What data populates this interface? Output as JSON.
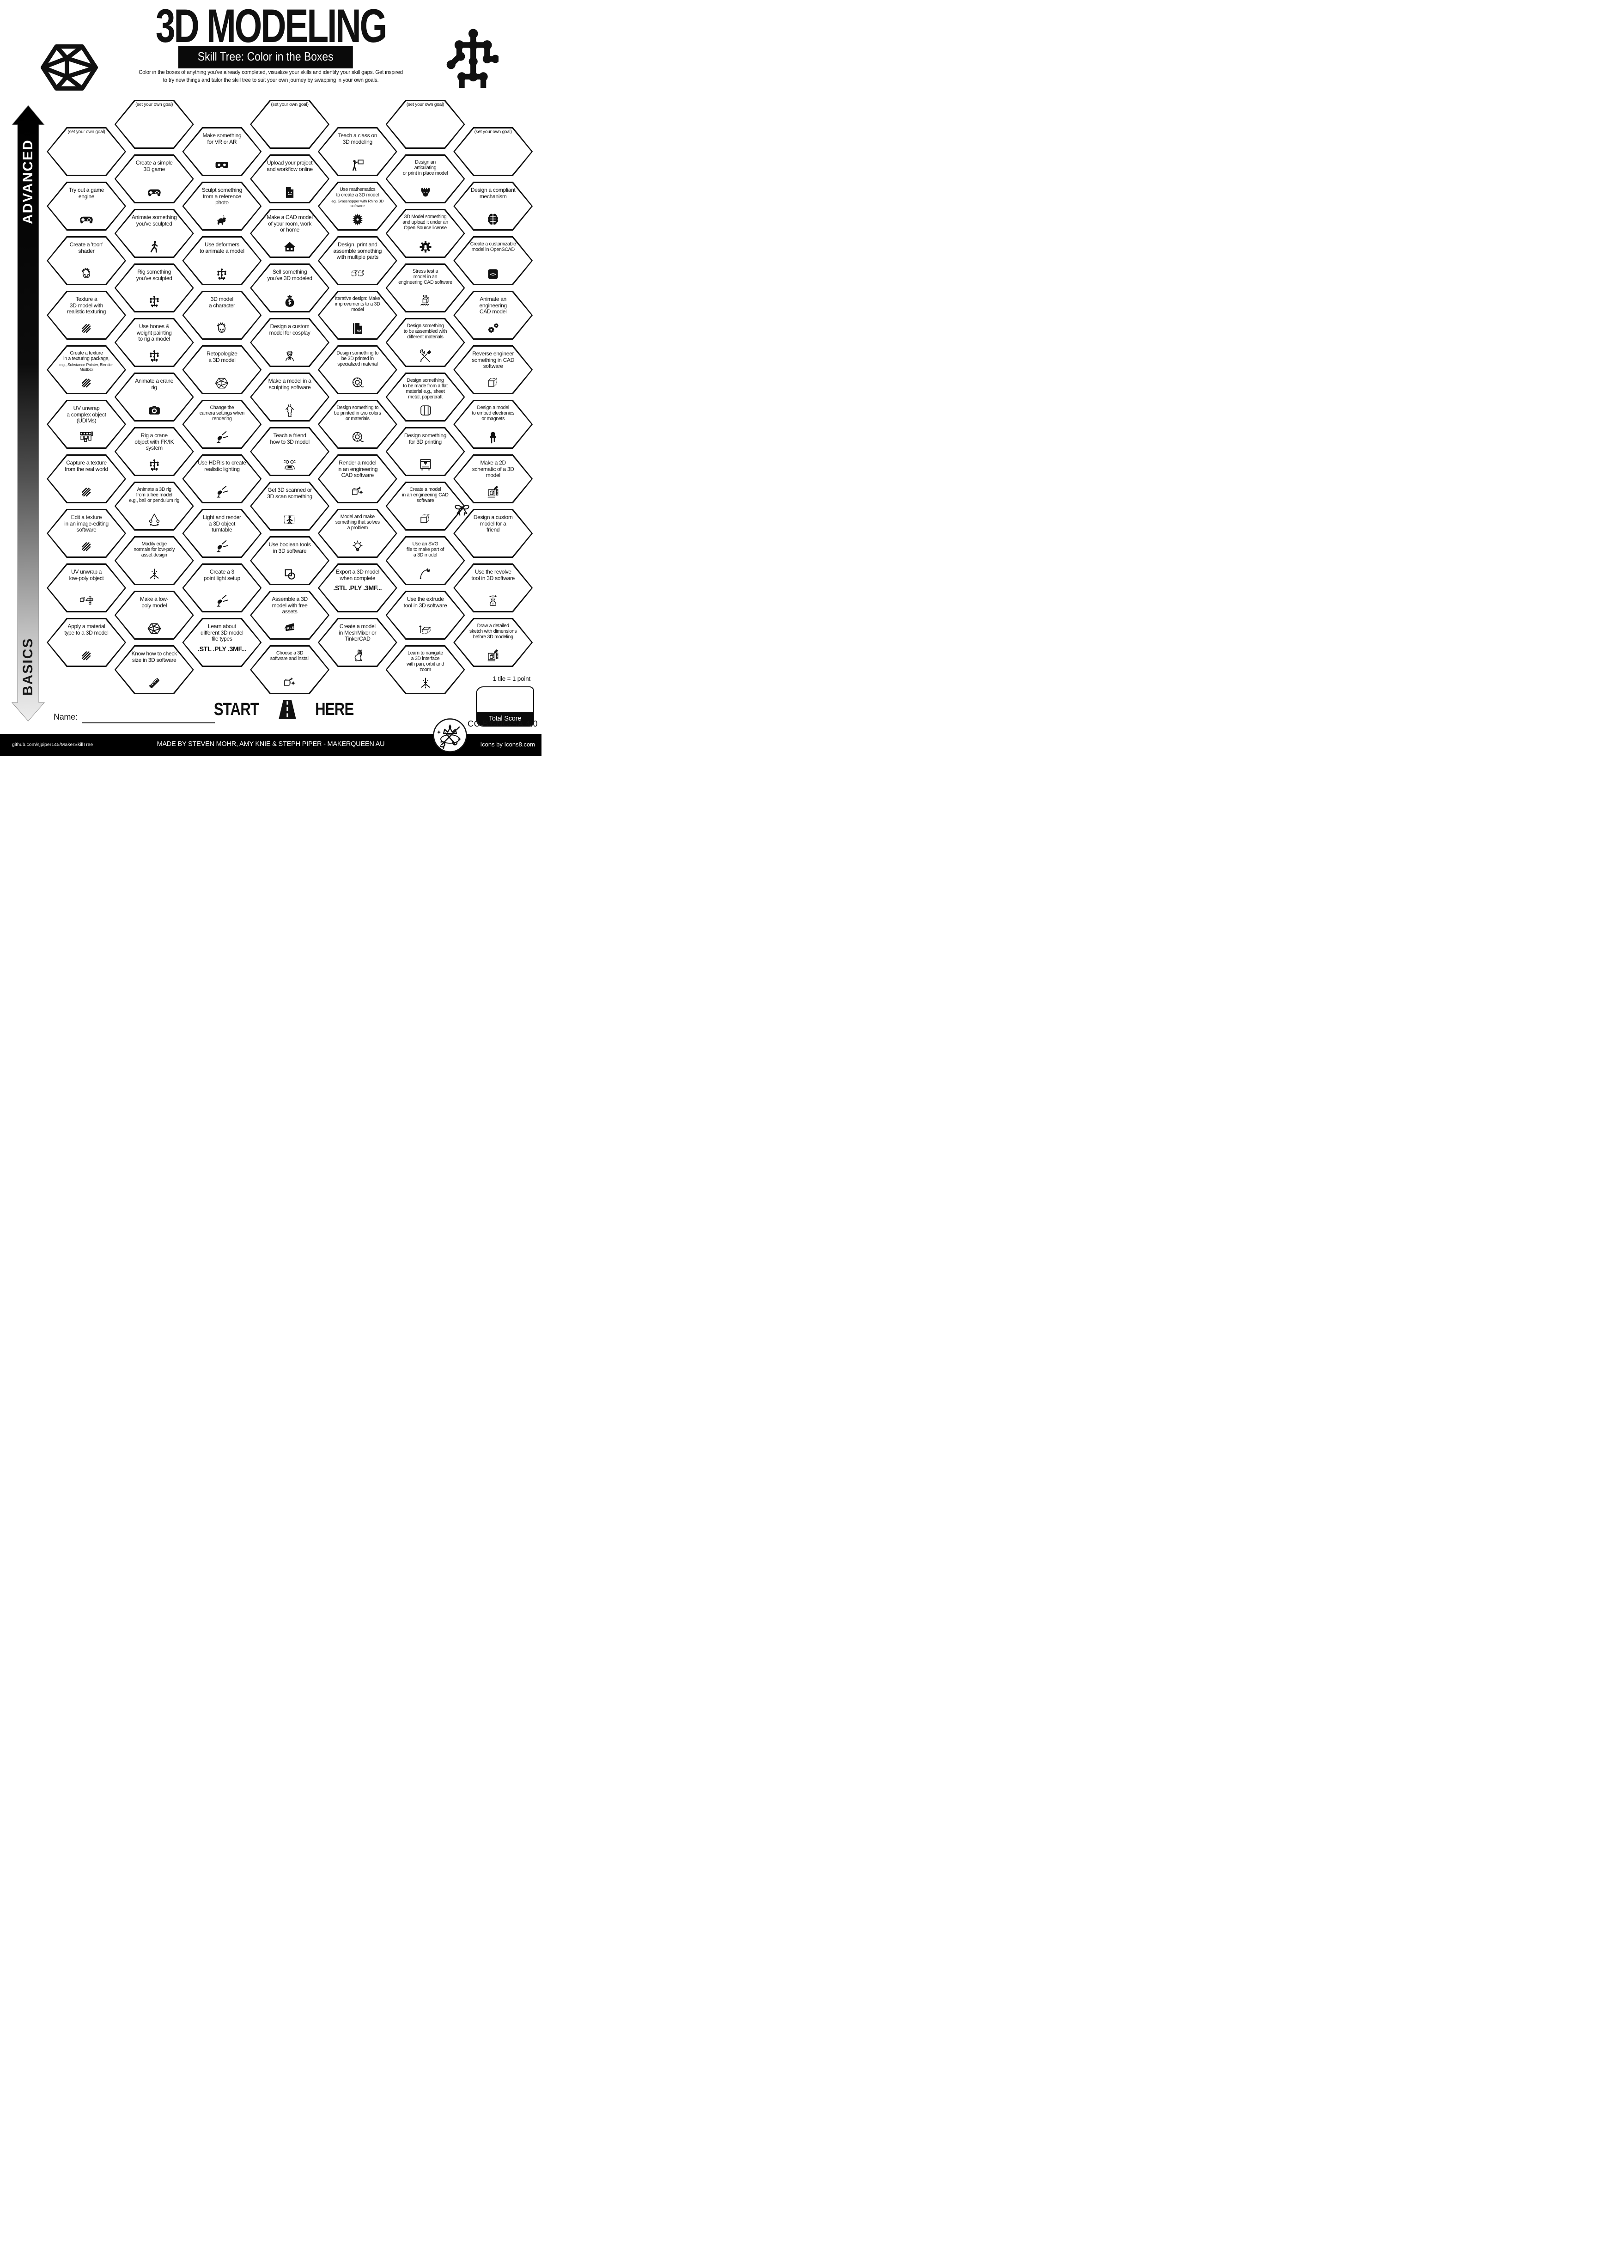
{
  "header": {
    "title": "3D MODELING",
    "subtitle": "Skill Tree: Color in the Boxes",
    "description": "Color in the boxes of anything you've already completed, visualize your skills and identify your skill gaps.  Get inspired\nto try new things and tailor the skill tree to suit your own journey by swapping in your own goals.",
    "logo_left": "icosahedron-logo",
    "logo_right": "skill-tree-logo"
  },
  "axis": {
    "top": "ADVANCED",
    "bottom": "BASICS"
  },
  "grid": {
    "columns": [
      {
        "tiles": [
          {
            "label": "(set your own goal)",
            "goal": true
          },
          {
            "label": "Try out a game\nengine",
            "icon": "gamepad"
          },
          {
            "label": "Create a 'toon'\nshader",
            "icon": "toonface"
          },
          {
            "label": "Texture a\n3D model with\nrealistic texturing",
            "icon": "hatch"
          },
          {
            "label": "Create a texture\nin a texturing package,",
            "sub": "e.g., Substance Painter, Blender,\nMudbox",
            "icon": "hatch"
          },
          {
            "label": "UV unwrap\na complex object\n(UDIMs)",
            "icon": "uvgrid"
          },
          {
            "label": "Capture a texture\nfrom the real world",
            "icon": "hatch"
          },
          {
            "label": "Edit a texture\nin an image-editing\nsoftware",
            "icon": "hatch"
          },
          {
            "label": "UV unwrap a\nlow-poly object",
            "icon": "cubeunwrap"
          },
          {
            "label": "Apply a material\ntype to a 3D model",
            "icon": "hatch"
          }
        ]
      },
      {
        "tiles": [
          {
            "label": "(set your own goal)",
            "goal": true
          },
          {
            "label": "Create a simple\n3D game",
            "icon": "gamepad"
          },
          {
            "label": "Animate something\nyou've sculpted",
            "icon": "walker"
          },
          {
            "label": "Rig something\nyou've sculpted",
            "icon": "rig"
          },
          {
            "label": "Use bones &\nweight painting\nto rig a model",
            "icon": "rig"
          },
          {
            "label": "Animate a crane\nrig",
            "icon": "camera"
          },
          {
            "label": "Rig a crane\nobject with FK/IK\nsystem",
            "icon": "rig"
          },
          {
            "label": "Animate a 3D rig\nfrom a free model\ne.g., ball or pendulum rig",
            "icon": "pendulum"
          },
          {
            "label": "Modify edge\nnormals for low-poly\nasset design",
            "icon": "normals"
          },
          {
            "label": "Make a low-\npoly model",
            "icon": "icosa"
          },
          {
            "label": "Know how to check\nsize in 3D software",
            "icon": "ruler"
          }
        ]
      },
      {
        "tiles": [
          {
            "label": "Make something\nfor VR or AR",
            "icon": "vr"
          },
          {
            "label": "Sculpt something\nfrom a reference\nphoto",
            "icon": "dog"
          },
          {
            "label": "Use deformers\nto animate a model",
            "icon": "rig"
          },
          {
            "label": "3D model\na character",
            "icon": "toonface"
          },
          {
            "label": "Retopologize\na 3D model",
            "icon": "retopo"
          },
          {
            "label": "Change the\ncamera settings when\nrendering",
            "icon": "spotlight"
          },
          {
            "label": "Use HDRIs to create\nrealistic lighting",
            "icon": "spotlight"
          },
          {
            "label": "Light and render\na 3D object\nturntable",
            "icon": "spotlight"
          },
          {
            "label": "Create a 3\npoint light setup",
            "icon": "spotlight"
          },
          {
            "label": "Learn about\ndifferent 3D model\nfile types",
            "bold": ".STL .PLY .3MF..."
          }
        ]
      },
      {
        "tiles": [
          {
            "label": "(set your own goal)",
            "goal": true
          },
          {
            "label": "Upload your project\nand workflow online",
            "icon": "docsmile"
          },
          {
            "label": "Make a CAD model\nof your room, work\nor home",
            "icon": "house"
          },
          {
            "label": "Sell something\nyou've 3D modeled",
            "icon": "moneybag"
          },
          {
            "label": "Design a custom\nmodel for cosplay",
            "icon": "cosplay"
          },
          {
            "label": "Make a model in a\nsculpting software",
            "icon": "statue"
          },
          {
            "label": "Teach a friend\nhow to 3D model",
            "icon": "friends"
          },
          {
            "label": "Get 3D scanned or\n3D scan something",
            "icon": "scan"
          },
          {
            "label": "Use boolean tools\nin 3D software",
            "icon": "boolean"
          },
          {
            "label": "Assemble a 3D\nmodel with free\nassets",
            "icon": "freetag"
          },
          {
            "label": "Choose a 3D\nsoftware and install",
            "icon": "render"
          }
        ]
      },
      {
        "tiles": [
          {
            "label": "Teach a class on\n3D modeling",
            "icon": "teach"
          },
          {
            "label": "Use mathematics\nto create a 3D model",
            "sub": "eg. Grasshopper with Rhino 3D\nsoftware",
            "icon": "math"
          },
          {
            "label": "Design, print and\nassemble something\nwith multiple parts",
            "icon": "cubes"
          },
          {
            "label": "Iterative design:  Make\nimprovements to a 3D\nmodel",
            "icon": "v2doc"
          },
          {
            "label": "Design something to\nbe 3D printed in\nspecialized material",
            "icon": "spool"
          },
          {
            "label": "Design something to\nbe printed in two colors\nor materials",
            "icon": "spool"
          },
          {
            "label": "Render a model\nin an engineering\nCAD software",
            "icon": "render"
          },
          {
            "label": "Model and make\nsomething that solves\na problem",
            "icon": "bulb"
          },
          {
            "label": "Export a 3D model\nwhen complete",
            "bold": ".STL .PLY .3MF..."
          },
          {
            "label": "Create a model\nin MeshMixer or\nTinkerCAD",
            "icon": "rabbit"
          }
        ]
      },
      {
        "tiles": [
          {
            "label": "(set your own goal)",
            "goal": true
          },
          {
            "label": "Design an\narticulating\nor print in place model",
            "icon": "dragon"
          },
          {
            "label": "3D Model something\nand upload it under an\nOpen Source license",
            "icon": "osgear"
          },
          {
            "label": "Stress test a\nmodel in an\nengineering CAD software",
            "icon": "stress"
          },
          {
            "label": "Design something\nto be assembled with\ndifferent materials",
            "icon": "tools"
          },
          {
            "label": "Design something\nto be made from a flat\nmaterial e.g., sheet\nmetal, papercraft",
            "icon": "sheet"
          },
          {
            "label": "Design something\nfor 3D printing",
            "icon": "printer"
          },
          {
            "label": "Create a model\nin an engineering CAD\nsoftware",
            "icon": "cadcube"
          },
          {
            "label": "Use an SVG\nfile to make part of\na 3D model",
            "icon": "svgpen"
          },
          {
            "label": "Use the extrude\ntool in 3D software",
            "icon": "extrude"
          },
          {
            "label": "Learn to navigate\na 3D interface\nwith pan, orbit and\nzoom",
            "icon": "normals"
          }
        ]
      },
      {
        "tiles": [
          {
            "label": "(set your own goal)",
            "goal": true
          },
          {
            "label": "Design a compliant\nmechanism",
            "icon": "brain"
          },
          {
            "label": "Create a customizable\nmodel in OpenSCAD",
            "icon": "openscad"
          },
          {
            "label": "Animate an\nengineering\nCAD model",
            "icon": "gears"
          },
          {
            "label": "Reverse engineer\nsomething in CAD\nsoftware",
            "icon": "cadcube"
          },
          {
            "label": "Design a model\nto embed electronics\nor magnets",
            "icon": "led"
          },
          {
            "label": "Make a 2D\nschematic of a 3D\nmodel",
            "icon": "schematic"
          },
          {
            "label": "Design a custom\nmodel for a\nfriend",
            "deco": "bow"
          },
          {
            "label": "Use the revolve\ntool in 3D software",
            "icon": "revolve"
          },
          {
            "label": "Draw a detailed\nsketch with dimensions\nbefore 3D modeling",
            "icon": "schematic"
          }
        ]
      }
    ]
  },
  "start": {
    "left": "START",
    "right": "HERE"
  },
  "name_label": "Name:",
  "score": {
    "note": "1 tile = 1 point",
    "total_label": "Total Score"
  },
  "license": "CC BY-NC-SA 4.0",
  "footer": {
    "github": "github.com/sjpiper145/MakerSkillTree",
    "credit": "MADE BY STEVEN MOHR, AMY KNIE & STEPH PIPER  -  MAKERQUEEN AU",
    "icons_credit": "Icons by Icons8.com"
  },
  "colors": {
    "ink": "#111111",
    "paper": "#ffffff"
  }
}
